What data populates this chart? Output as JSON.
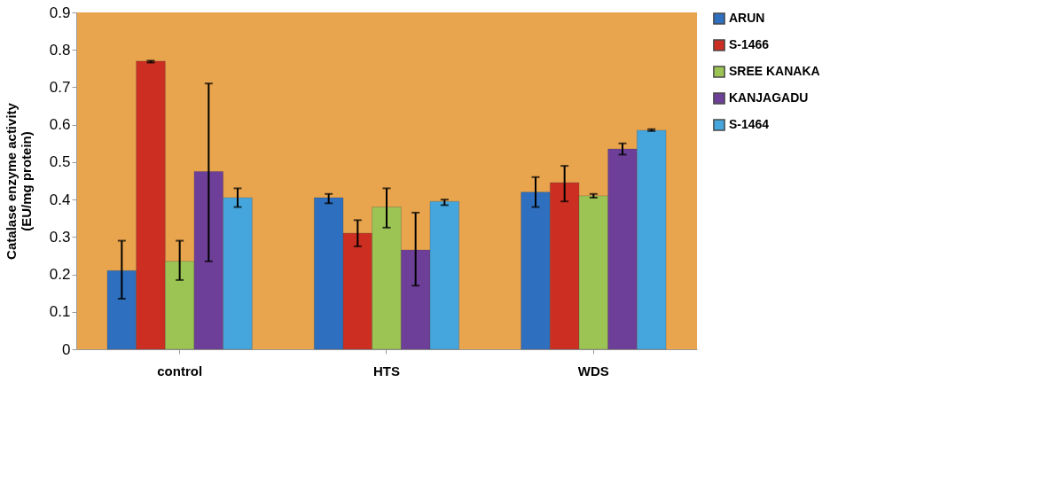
{
  "chart_data": {
    "type": "bar",
    "ylabel": "Catalase enzyme activity\n(EU/mg protein)",
    "categories": [
      "control",
      "HTS",
      "WDS"
    ],
    "series": [
      {
        "name": "ARUN",
        "color": "#2e6fbf",
        "values": [
          0.21,
          0.405,
          0.42
        ],
        "errors": [
          [
            0.135,
            0.29
          ],
          [
            0.39,
            0.415
          ],
          [
            0.38,
            0.46
          ]
        ]
      },
      {
        "name": "S-1466",
        "color": "#cc2f22",
        "values": [
          0.77,
          0.31,
          0.445
        ],
        "errors": [
          [
            0.766,
            0.771
          ],
          [
            0.275,
            0.345
          ],
          [
            0.395,
            0.49
          ]
        ]
      },
      {
        "name": "SREE KANAKA",
        "color": "#9cc455",
        "values": [
          0.235,
          0.38,
          0.41
        ],
        "errors": [
          [
            0.185,
            0.29
          ],
          [
            0.325,
            0.43
          ],
          [
            0.405,
            0.415
          ]
        ]
      },
      {
        "name": "KANJAGADU",
        "color": "#6e3f98",
        "values": [
          0.475,
          0.265,
          0.535
        ],
        "errors": [
          [
            0.235,
            0.71
          ],
          [
            0.17,
            0.365
          ],
          [
            0.52,
            0.55
          ]
        ]
      },
      {
        "name": "S-1464",
        "color": "#45a6de",
        "values": [
          0.405,
          0.395,
          0.585
        ],
        "errors": [
          [
            0.38,
            0.43
          ],
          [
            0.385,
            0.4
          ],
          [
            0.583,
            0.588
          ]
        ]
      }
    ],
    "ylim": [
      0,
      0.9
    ],
    "yticks": [
      0,
      0.1,
      0.2,
      0.3,
      0.4,
      0.5,
      0.6,
      0.7,
      0.8,
      0.9
    ],
    "grid": false,
    "legend": "right"
  }
}
